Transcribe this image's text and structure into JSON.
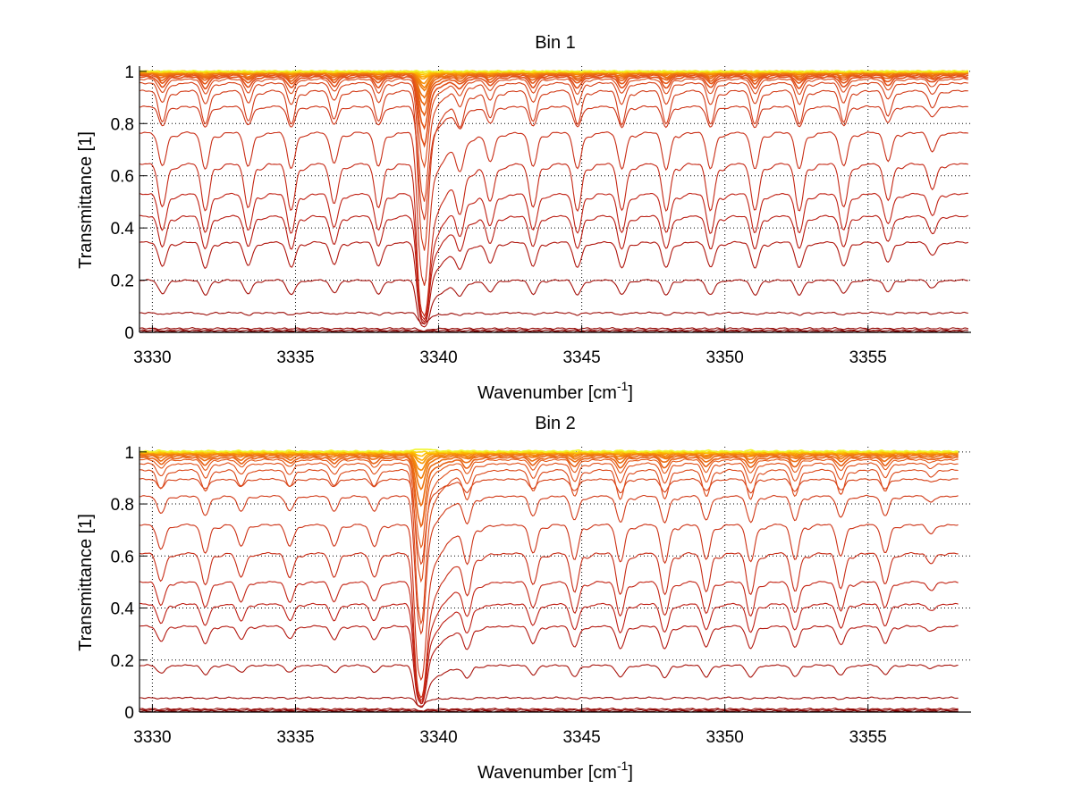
{
  "figure": {
    "background": "#ffffff"
  },
  "chart_data": [
    {
      "type": "line",
      "title": "Bin 1",
      "xlabel": "Wavenumber [cm",
      "xlabel_sup": "-1",
      "xlabel_end": "]",
      "ylabel": "Transmittance [1]",
      "xlim": [
        3329.55,
        3358.6
      ],
      "ylim": [
        0,
        1.02
      ],
      "xticks": [
        3330,
        3335,
        3340,
        3345,
        3350,
        3355
      ],
      "xtick_labels": [
        "3330",
        "3335",
        "3340",
        "3345",
        "3350",
        "3355"
      ],
      "yticks": [
        0,
        0.2,
        0.4,
        0.6,
        0.8,
        1
      ],
      "ytick_labels": [
        "0",
        "0.2",
        "0.4",
        "0.6",
        "0.8",
        "1"
      ],
      "grid": "dotted",
      "x_data_end": 3358.5,
      "colormap": "autumn-hot (dark red at low transmittance to yellow at high)",
      "main_line": {
        "center": 3339.45,
        "depth": 0.95,
        "width": 0.14,
        "tail": 1.6
      },
      "absorption_lines": [
        {
          "center": 3330.35,
          "strength": 0.55
        },
        {
          "center": 3331.85,
          "strength": 0.6
        },
        {
          "center": 3333.35,
          "strength": 0.55
        },
        {
          "center": 3334.85,
          "strength": 0.6
        },
        {
          "center": 3336.35,
          "strength": 0.5
        },
        {
          "center": 3337.9,
          "strength": 0.55
        },
        {
          "center": 3340.75,
          "strength": 0.5
        },
        {
          "center": 3341.8,
          "strength": 0.45
        },
        {
          "center": 3343.3,
          "strength": 0.55
        },
        {
          "center": 3344.85,
          "strength": 0.6
        },
        {
          "center": 3346.4,
          "strength": 0.6
        },
        {
          "center": 3347.95,
          "strength": 0.6
        },
        {
          "center": 3349.5,
          "strength": 0.6
        },
        {
          "center": 3351.05,
          "strength": 0.6
        },
        {
          "center": 3352.6,
          "strength": 0.6
        },
        {
          "center": 3354.15,
          "strength": 0.55
        },
        {
          "center": 3355.7,
          "strength": 0.45
        },
        {
          "center": 3357.25,
          "strength": 0.3
        }
      ],
      "series_baselines": [
        0.003,
        0.008,
        0.015,
        0.075,
        0.2,
        0.345,
        0.445,
        0.53,
        0.645,
        0.765,
        0.865,
        0.925,
        0.955,
        0.97,
        0.978,
        0.984,
        0.988,
        0.991,
        0.993,
        0.995,
        0.996,
        0.997,
        0.998,
        0.9985,
        0.999,
        0.9995,
        1.0
      ]
    },
    {
      "type": "line",
      "title": "Bin 2",
      "xlabel": "Wavenumber [cm",
      "xlabel_sup": "-1",
      "xlabel_end": "]",
      "ylabel": "Transmittance [1]",
      "xlim": [
        3329.55,
        3358.6
      ],
      "ylim": [
        0,
        1.02
      ],
      "xticks": [
        3330,
        3335,
        3340,
        3345,
        3350,
        3355
      ],
      "xtick_labels": [
        "3330",
        "3335",
        "3340",
        "3345",
        "3350",
        "3355"
      ],
      "yticks": [
        0,
        0.2,
        0.4,
        0.6,
        0.8,
        1
      ],
      "ytick_labels": [
        "0",
        "0.2",
        "0.4",
        "0.6",
        "0.8",
        "1"
      ],
      "grid": "dotted",
      "x_data_end": 3358.15,
      "colormap": "autumn-hot (dark red at low transmittance to yellow at high)",
      "main_line": {
        "center": 3339.35,
        "depth": 0.95,
        "width": 0.14,
        "tail": 1.5
      },
      "absorption_lines": [
        {
          "center": 3330.3,
          "strength": 0.35
        },
        {
          "center": 3331.85,
          "strength": 0.4
        },
        {
          "center": 3333.1,
          "strength": 0.3
        },
        {
          "center": 3334.8,
          "strength": 0.3
        },
        {
          "center": 3336.35,
          "strength": 0.3
        },
        {
          "center": 3337.75,
          "strength": 0.3
        },
        {
          "center": 3341.0,
          "strength": 0.5
        },
        {
          "center": 3343.3,
          "strength": 0.4
        },
        {
          "center": 3344.75,
          "strength": 0.5
        },
        {
          "center": 3346.35,
          "strength": 0.55
        },
        {
          "center": 3347.9,
          "strength": 0.55
        },
        {
          "center": 3349.35,
          "strength": 0.5
        },
        {
          "center": 3350.9,
          "strength": 0.55
        },
        {
          "center": 3352.45,
          "strength": 0.5
        },
        {
          "center": 3354.05,
          "strength": 0.45
        },
        {
          "center": 3355.6,
          "strength": 0.4
        },
        {
          "center": 3357.2,
          "strength": 0.12
        }
      ],
      "series_baselines": [
        0.003,
        0.008,
        0.012,
        0.055,
        0.18,
        0.33,
        0.415,
        0.5,
        0.61,
        0.72,
        0.83,
        0.895,
        0.93,
        0.955,
        0.97,
        0.978,
        0.985,
        0.99,
        0.993,
        0.995,
        0.997,
        0.998,
        0.999,
        1.0,
        1.002
      ]
    }
  ]
}
